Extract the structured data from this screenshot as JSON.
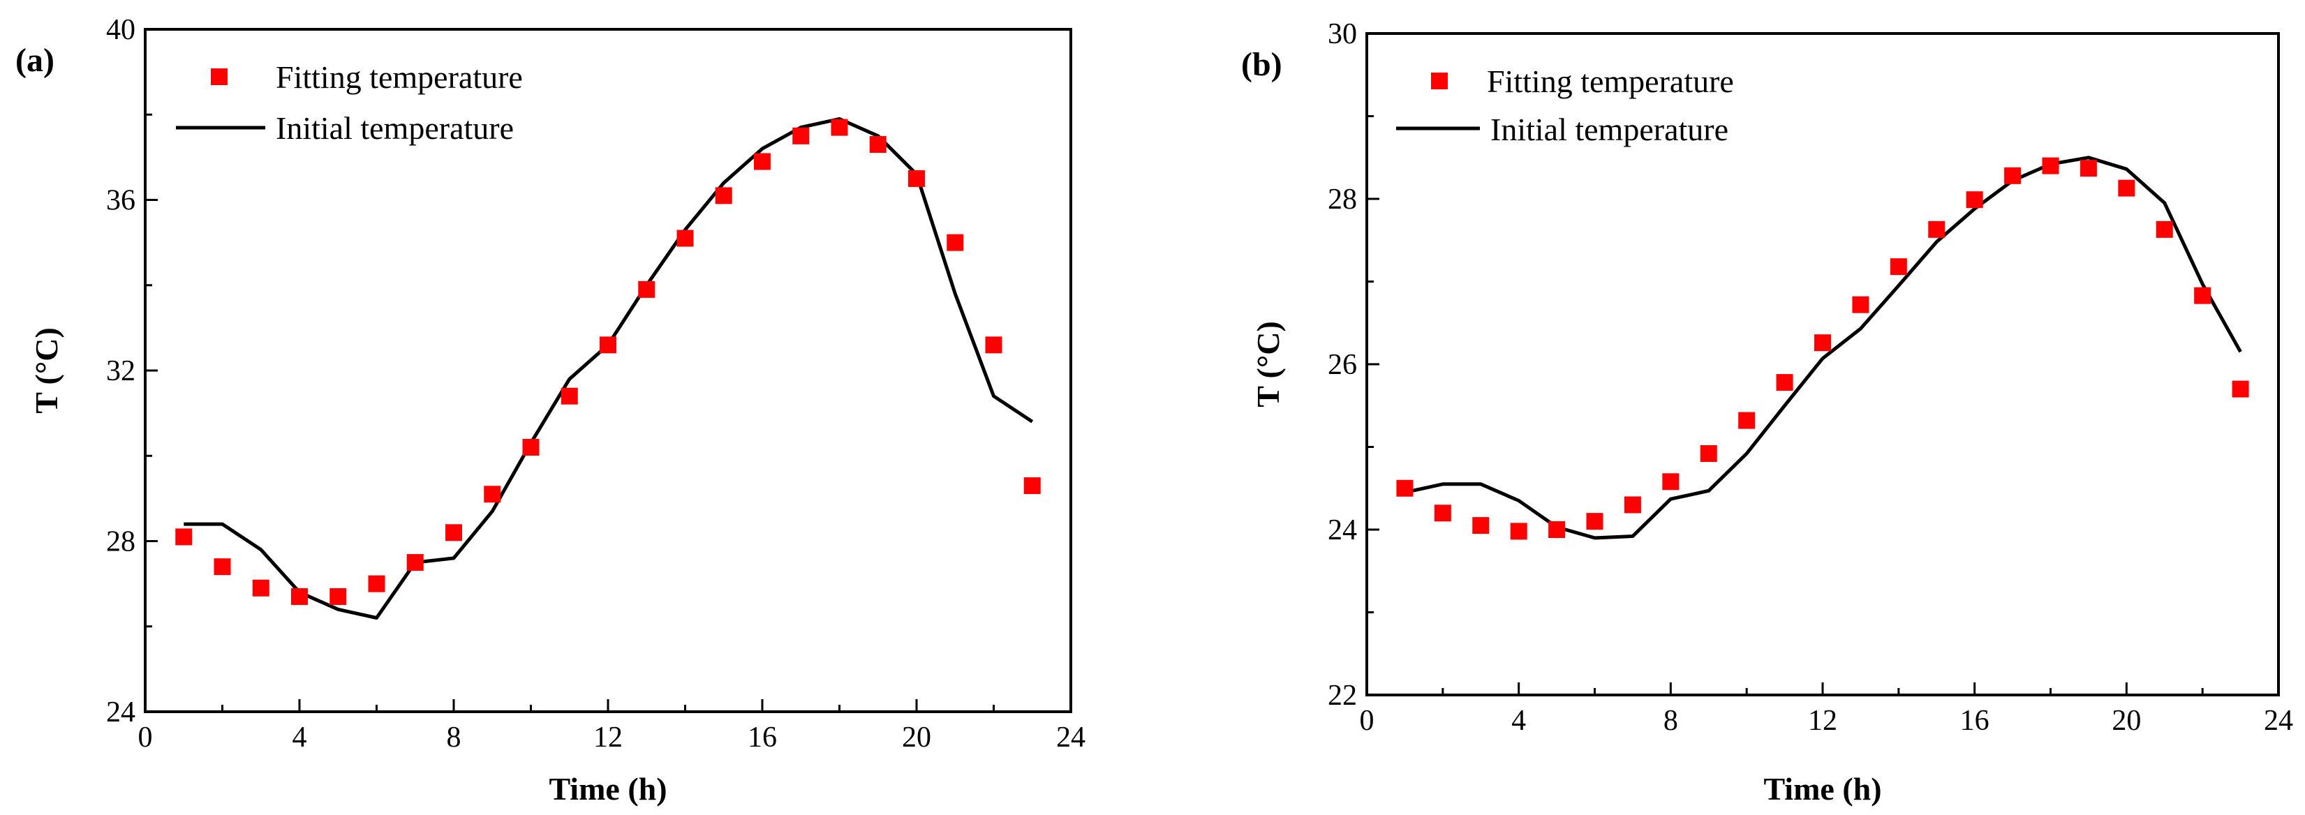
{
  "chart_data": [
    {
      "type": "line",
      "panel_label": "(a)",
      "xlabel": "Time (h)",
      "ylabel": "T (°C)",
      "xlim": [
        0,
        24
      ],
      "ylim": [
        24,
        40
      ],
      "xticks": [
        0,
        4,
        8,
        12,
        16,
        20,
        24
      ],
      "yticks": [
        24,
        28,
        32,
        36,
        40
      ],
      "legend_position": "top-left",
      "series": [
        {
          "name": "Fitting temperature",
          "style": "square-markers",
          "color": "#ff0000",
          "x": [
            1,
            2,
            3,
            4,
            5,
            6,
            7,
            8,
            9,
            10,
            11,
            12,
            13,
            14,
            15,
            16,
            17,
            18,
            19,
            20,
            21,
            22,
            23
          ],
          "y": [
            28.1,
            27.4,
            26.9,
            26.7,
            26.7,
            27.0,
            27.5,
            28.2,
            29.1,
            30.2,
            31.4,
            32.6,
            33.9,
            35.1,
            36.1,
            36.9,
            37.5,
            37.7,
            37.3,
            36.5,
            35.0,
            32.6,
            29.3
          ]
        },
        {
          "name": "Initial temperature",
          "style": "line",
          "color": "#000000",
          "x": [
            1,
            2,
            3,
            4,
            5,
            6,
            7,
            8,
            9,
            10,
            11,
            12,
            13,
            14,
            15,
            16,
            17,
            18,
            19,
            20,
            21,
            22,
            23
          ],
          "y": [
            28.4,
            28.4,
            27.8,
            26.8,
            26.4,
            26.2,
            27.5,
            27.6,
            28.7,
            30.3,
            31.8,
            32.6,
            34.0,
            35.3,
            36.4,
            37.2,
            37.7,
            37.9,
            37.5,
            36.6,
            33.8,
            31.4,
            30.8
          ]
        }
      ]
    },
    {
      "type": "line",
      "panel_label": "(b)",
      "xlabel": "Time (h)",
      "ylabel": "T (°C)",
      "xlim": [
        0,
        24
      ],
      "ylim": [
        22,
        30
      ],
      "xticks": [
        0,
        4,
        8,
        12,
        16,
        20,
        24
      ],
      "yticks": [
        22,
        24,
        26,
        28,
        30
      ],
      "legend_position": "top-left",
      "series": [
        {
          "name": "Fitting temperature",
          "style": "square-markers",
          "color": "#ff0000",
          "x": [
            1,
            2,
            3,
            4,
            5,
            6,
            7,
            8,
            9,
            10,
            11,
            12,
            13,
            14,
            15,
            16,
            17,
            18,
            19,
            20,
            21,
            22,
            23
          ],
          "y": [
            24.5,
            24.2,
            24.05,
            23.98,
            24.0,
            24.1,
            24.3,
            24.58,
            24.92,
            25.32,
            25.78,
            26.26,
            26.72,
            27.18,
            27.63,
            27.99,
            28.28,
            28.4,
            28.37,
            28.13,
            27.63,
            26.83,
            25.7
          ]
        },
        {
          "name": "Initial temperature",
          "style": "line",
          "color": "#000000",
          "x": [
            1,
            2,
            3,
            4,
            5,
            6,
            7,
            8,
            9,
            10,
            11,
            12,
            13,
            14,
            15,
            16,
            17,
            18,
            19,
            20,
            21,
            22,
            23
          ],
          "y": [
            24.45,
            24.55,
            24.55,
            24.35,
            24.03,
            23.9,
            23.92,
            24.37,
            24.47,
            24.92,
            25.5,
            26.07,
            26.43,
            26.95,
            27.48,
            27.88,
            28.22,
            28.42,
            28.5,
            28.36,
            27.95,
            26.97,
            26.15
          ]
        }
      ]
    }
  ]
}
